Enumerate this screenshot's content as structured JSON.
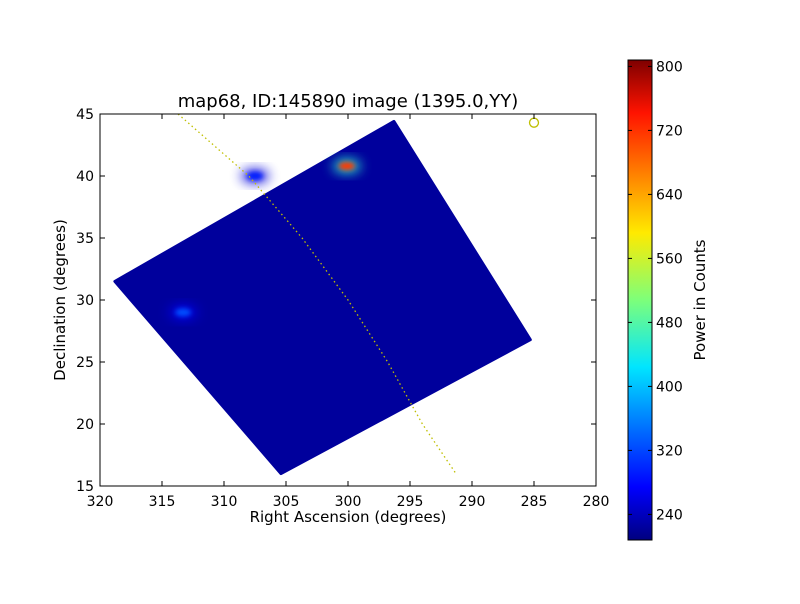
{
  "chart_data": {
    "type": "heatmap",
    "title": "map68, ID:145890 image (1395.0,YY)",
    "xlabel": "Right Ascension (degrees)",
    "ylabel": "Declination (degrees)",
    "xlim": [
      320,
      280
    ],
    "ylim": [
      15,
      45
    ],
    "x_ticks": [
      320,
      315,
      310,
      305,
      300,
      295,
      290,
      285,
      280
    ],
    "y_ticks": [
      15,
      20,
      25,
      30,
      35,
      40,
      45
    ],
    "map_corners_ra_dec": [
      [
        318.8,
        31.5
      ],
      [
        296.3,
        44.4
      ],
      [
        285.3,
        26.8
      ],
      [
        305.4,
        16.0
      ]
    ],
    "hotspots": [
      {
        "ra": 300.1,
        "dec": 40.8,
        "intensity": 700
      },
      {
        "ra": 313.3,
        "dec": 29.0,
        "intensity": 330
      },
      {
        "ra": 307.5,
        "dec": 40.0,
        "intensity": 300
      }
    ],
    "background_level": 225,
    "overlay_curve_ra_dec": [
      [
        313.7,
        45.0
      ],
      [
        308.0,
        40.0
      ],
      [
        303.7,
        35.0
      ],
      [
        300.0,
        30.0
      ],
      [
        296.8,
        25.0
      ],
      [
        294.0,
        20.0
      ],
      [
        291.3,
        16.0
      ]
    ],
    "overlay_curve_color": "#bfbf00",
    "marker": {
      "ra": 285.0,
      "dec": 44.3,
      "color": "#bfbf00"
    },
    "colorbar": {
      "label": "Power in Counts",
      "range": [
        208,
        808
      ],
      "ticks": [
        240,
        320,
        400,
        480,
        560,
        640,
        720,
        800
      ],
      "colormap": "jet"
    }
  }
}
